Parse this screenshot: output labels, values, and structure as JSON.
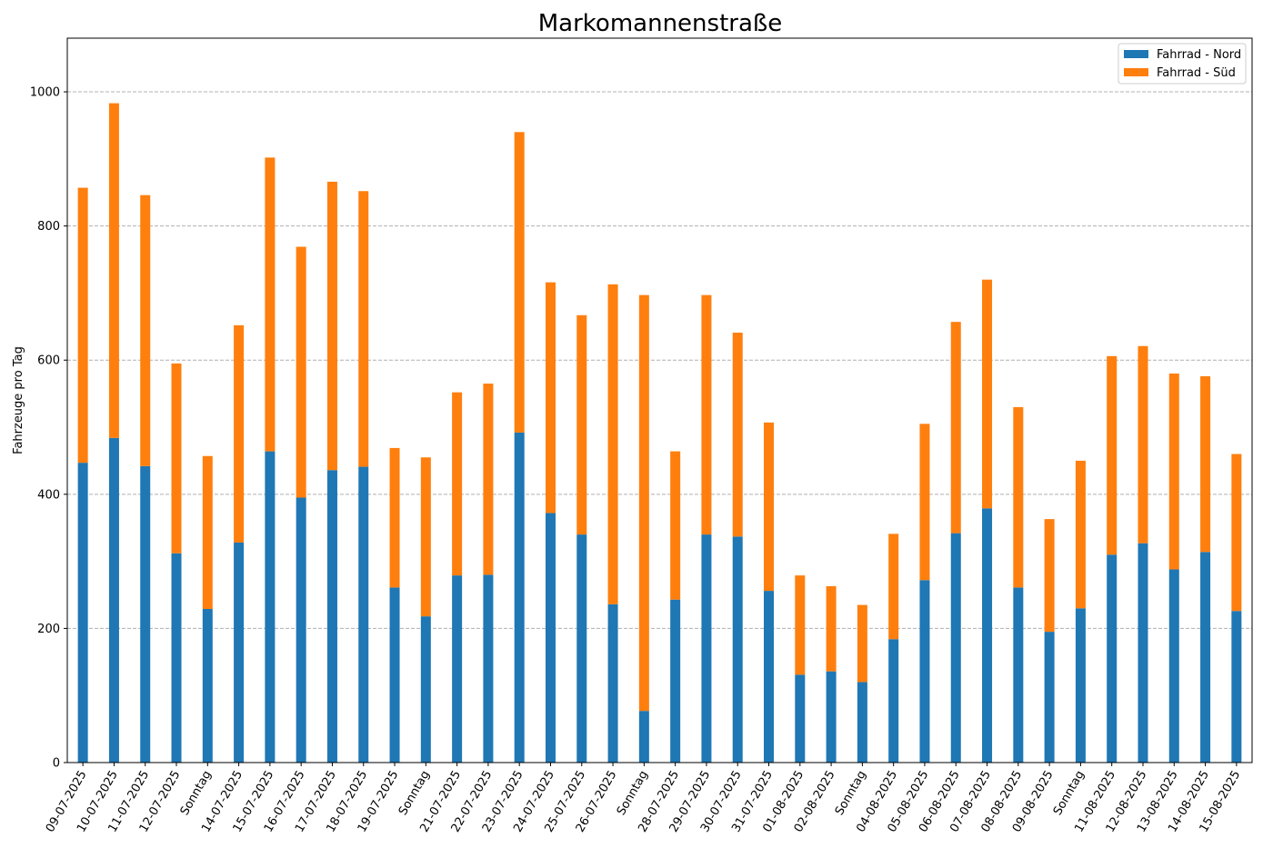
{
  "chart_data": {
    "type": "bar",
    "stacked": true,
    "title": "Markomannenstraße",
    "xlabel": "",
    "ylabel": "Fahrzeuge pro Tag",
    "ylim": [
      0,
      1080
    ],
    "yticks": [
      0,
      200,
      400,
      600,
      800,
      1000
    ],
    "grid": "horizontal dashed",
    "legend_position": "top-right",
    "categories": [
      "09-07-2025",
      "10-07-2025",
      "11-07-2025",
      "12-07-2025",
      "Sonntag",
      "14-07-2025",
      "15-07-2025",
      "16-07-2025",
      "17-07-2025",
      "18-07-2025",
      "19-07-2025",
      "Sonntag",
      "21-07-2025",
      "22-07-2025",
      "23-07-2025",
      "24-07-2025",
      "25-07-2025",
      "26-07-2025",
      "Sonntag",
      "28-07-2025",
      "29-07-2025",
      "30-07-2025",
      "31-07-2025",
      "01-08-2025",
      "02-08-2025",
      "Sonntag",
      "04-08-2025",
      "05-08-2025",
      "06-08-2025",
      "07-08-2025",
      "08-08-2025",
      "09-08-2025",
      "Sonntag",
      "11-08-2025",
      "12-08-2025",
      "13-08-2025",
      "14-08-2025",
      "15-08-2025"
    ],
    "series": [
      {
        "name": "Fahrrad - Nord",
        "color": "#1f77b4",
        "values": [
          447,
          484,
          442,
          312,
          229,
          328,
          464,
          395,
          436,
          441,
          261,
          218,
          279,
          280,
          492,
          372,
          340,
          236,
          77,
          243,
          340,
          337,
          256,
          131,
          136,
          120,
          184,
          272,
          342,
          379,
          261,
          195,
          230,
          310,
          327,
          288,
          314,
          226
        ]
      },
      {
        "name": "Fahrrad - Süd",
        "color": "#ff7f0e",
        "values": [
          410,
          499,
          404,
          283,
          228,
          324,
          438,
          374,
          430,
          411,
          208,
          237,
          273,
          285,
          448,
          344,
          327,
          477,
          620,
          221,
          357,
          304,
          251,
          148,
          127,
          115,
          157,
          233,
          315,
          341,
          269,
          168,
          220,
          296,
          294,
          292,
          262,
          234
        ]
      }
    ]
  }
}
